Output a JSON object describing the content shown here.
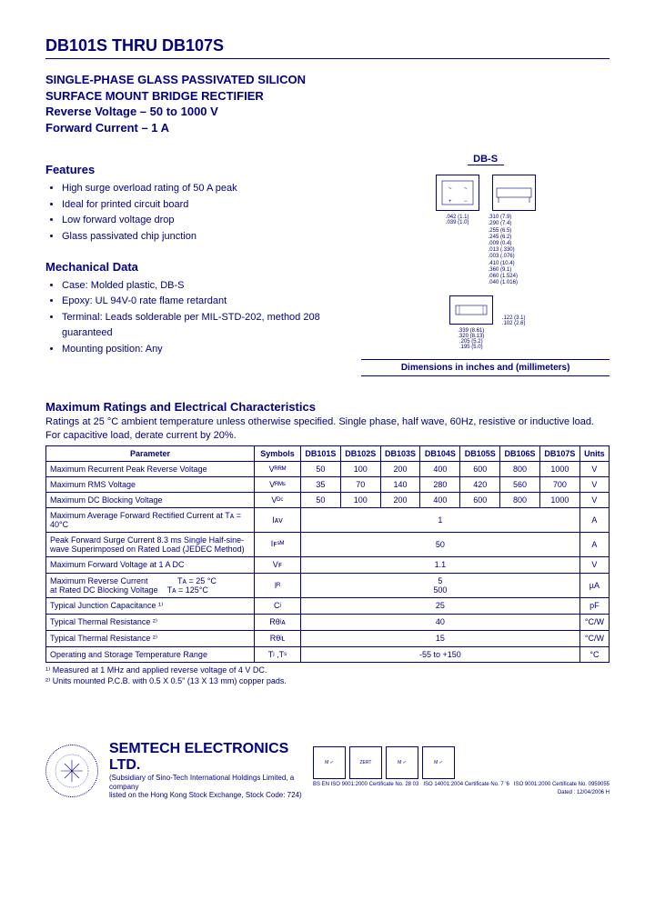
{
  "header": {
    "title": "DB101S THRU DB107S",
    "subtitle_line1": "SINGLE-PHASE GLASS PASSIVATED SILICON",
    "subtitle_line2": "SURFACE MOUNT BRIDGE RECTIFIER",
    "subtitle_line3": "Reverse Voltage – 50 to 1000 V",
    "subtitle_line4": "Forward Current – 1 A"
  },
  "package_label": "DB-S",
  "features_h": "Features",
  "features": [
    "High surge overload rating of 50 A peak",
    "Ideal for printed circuit board",
    "Low forward voltage drop",
    "Glass passivated chip junction"
  ],
  "mech_h": "Mechanical Data",
  "mechanical": [
    "Case: Molded plastic, DB-S",
    "Epoxy: UL 94V-0 rate flame retardant",
    "Terminal: Leads solderable per MIL-STD-202, method 208 guaranteed",
    "Mounting position: Any"
  ],
  "dim_caption": "Dimensions in inches and (millimeters)",
  "ratings_h": "Maximum Ratings and Electrical Characteristics",
  "ratings_desc": "Ratings at 25 °C ambient temperature unless otherwise specified. Single phase, half wave, 60Hz, resistive or inductive load. For capacitive load, derate current by 20%.",
  "table": {
    "head": [
      "Parameter",
      "Symbols",
      "DB101S",
      "DB102S",
      "DB103S",
      "DB104S",
      "DB105S",
      "DB106S",
      "DB107S",
      "Units"
    ],
    "rows": [
      {
        "param": "Maximum Recurrent Peak Reverse Voltage",
        "sym": "Vᴿᴿᴹ",
        "vals": [
          "50",
          "100",
          "200",
          "400",
          "600",
          "800",
          "1000"
        ],
        "unit": "V"
      },
      {
        "param": "Maximum RMS Voltage",
        "sym": "Vᴿᴹˢ",
        "vals": [
          "35",
          "70",
          "140",
          "280",
          "420",
          "560",
          "700"
        ],
        "unit": "V"
      },
      {
        "param": "Maximum DC Blocking Voltage",
        "sym": "Vᴰᶜ",
        "vals": [
          "50",
          "100",
          "200",
          "400",
          "600",
          "800",
          "1000"
        ],
        "unit": "V"
      },
      {
        "param": "Maximum Average Forward Rectified Current at Tᴀ = 40°C",
        "sym": "Iᴀᴠ",
        "span": "1",
        "unit": "A"
      },
      {
        "param": "Peak Forward Surge Current 8.3 ms Single Half-sine-wave Superimposed on Rated Load (JEDEC Method)",
        "sym": "Iꜰˢᴹ",
        "span": "50",
        "unit": "A"
      },
      {
        "param": "Maximum Forward Voltage at 1 A DC",
        "sym": "Vꜰ",
        "span": "1.1",
        "unit": "V"
      },
      {
        "param": "Maximum Reverse Current             Tᴀ = 25 °C\nat Rated DC Blocking Voltage    Tᴀ = 125°C",
        "sym": "Iᴿ",
        "span2": [
          "5",
          "500"
        ],
        "unit": "µA"
      },
      {
        "param": "Typical Junction Capacitance ¹⁾",
        "sym": "Cʲ",
        "span": "25",
        "unit": "pF"
      },
      {
        "param": "Typical Thermal Resistance ²⁾",
        "sym": "Rθʲᴀ",
        "span": "40",
        "unit": "°C/W"
      },
      {
        "param": "Typical Thermal Resistance ²⁾",
        "sym": "Rθʲʟ",
        "span": "15",
        "unit": "°C/W"
      },
      {
        "param": "Operating and Storage Temperature Range",
        "sym": "Tʲ ,Tˢ",
        "span": "-55 to +150",
        "unit": "°C"
      }
    ]
  },
  "footnote1": "¹⁾ Measured at 1 MHz and applied reverse voltage of 4 V DC.",
  "footnote2": "²⁾ Units mounted P.C.B. with 0.5 X 0.5\" (13 X 13 mm) copper pads.",
  "footer": {
    "company": "SEMTECH ELECTRONICS LTD.",
    "sub1": "(Subsidiary of Sino-Tech International Holdings Limited, a company",
    "sub2": "listed on the Hong Kong Stock Exchange, Stock Code: 724)",
    "iso1": "BS EN ISO 9001:2000\nCertificate No. 28 03",
    "iso2": "ISO 14001:2004\nCertificate No. 7 '6",
    "iso3": "ISO 9001:2000\nCertificate No. 0959055",
    "dated": "Dated : 12/04/2006    H"
  }
}
